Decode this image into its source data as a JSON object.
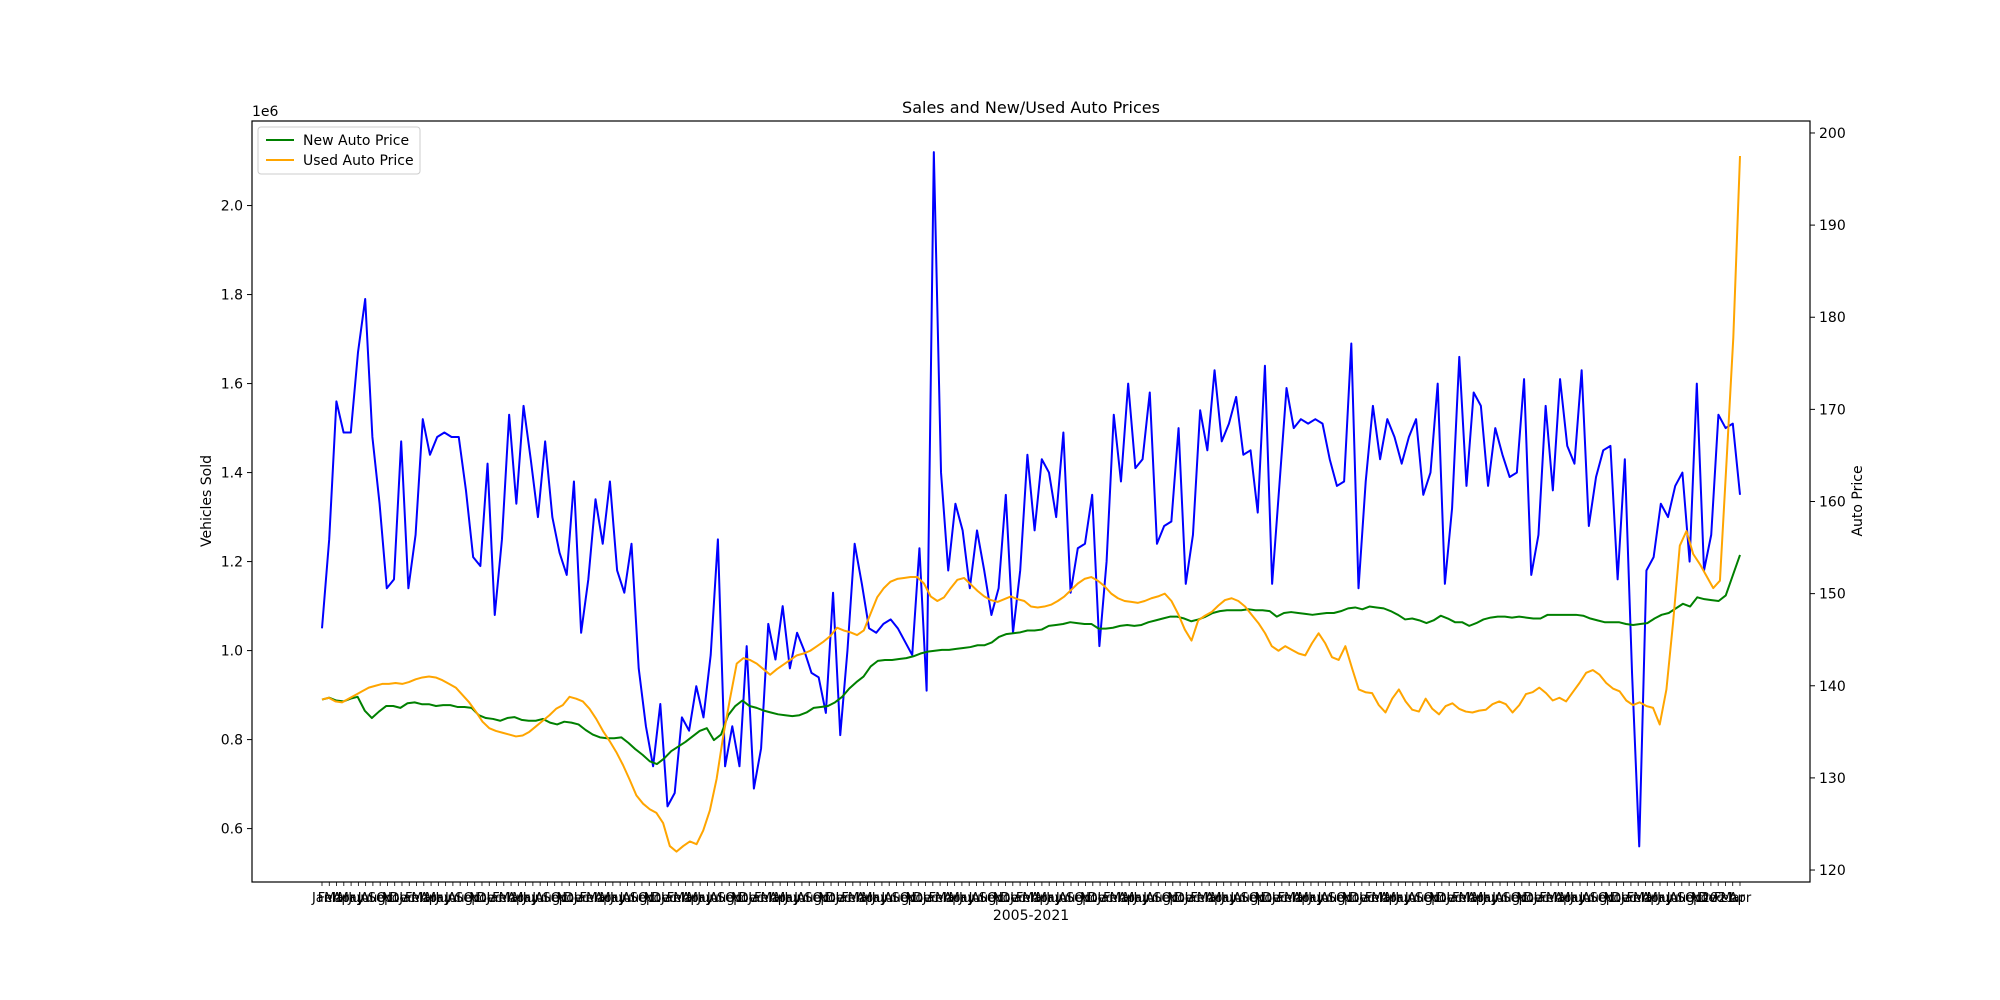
{
  "chart_data": {
    "type": "line",
    "title": "Sales and New/Used Auto Prices",
    "xlabel": "2005-2021",
    "ylabel_left": "Vehicles Sold",
    "ylabel_right": "Auto Price",
    "left_offset_label": "1e6",
    "left_ylim": [
      0.48,
      2.19
    ],
    "right_ylim": [
      118.7,
      201.3
    ],
    "left_yticks": [
      0.6,
      0.8,
      1.0,
      1.2,
      1.4,
      1.6,
      1.8,
      2.0
    ],
    "left_ytick_labels": [
      "0.6",
      "0.8",
      "1.0",
      "1.2",
      "1.4",
      "1.6",
      "1.8",
      "2.0"
    ],
    "right_yticks": [
      120,
      130,
      140,
      150,
      160,
      170,
      180,
      190,
      200
    ],
    "right_ytick_labels": [
      "120",
      "130",
      "140",
      "150",
      "160",
      "170",
      "180",
      "190",
      "200"
    ],
    "x_start": "2005-01",
    "x_end": "2021-04",
    "x_tick_label_examples": [
      "Jan",
      "Mar",
      "May",
      "Jul",
      "Sep",
      "Nov",
      "2021"
    ],
    "grid": false,
    "legend": "top-left",
    "series": [
      {
        "name": "Vehicles Sold",
        "axis": "left",
        "color": "#0000ff",
        "in_legend": false,
        "values": [
          1.05,
          1.25,
          1.56,
          1.49,
          1.49,
          1.67,
          1.79,
          1.48,
          1.33,
          1.14,
          1.16,
          1.47,
          1.14,
          1.26,
          1.52,
          1.44,
          1.48,
          1.49,
          1.48,
          1.48,
          1.36,
          1.21,
          1.19,
          1.42,
          1.08,
          1.25,
          1.53,
          1.33,
          1.55,
          1.43,
          1.3,
          1.47,
          1.3,
          1.22,
          1.17,
          1.38,
          1.04,
          1.16,
          1.34,
          1.24,
          1.38,
          1.18,
          1.13,
          1.24,
          0.96,
          0.83,
          0.74,
          0.88,
          0.65,
          0.68,
          0.85,
          0.82,
          0.92,
          0.85,
          0.99,
          1.25,
          0.74,
          0.83,
          0.74,
          1.01,
          0.69,
          0.78,
          1.06,
          0.98,
          1.1,
          0.96,
          1.04,
          1.0,
          0.95,
          0.94,
          0.86,
          1.13,
          0.81,
          1.0,
          1.24,
          1.15,
          1.05,
          1.04,
          1.06,
          1.07,
          1.05,
          1.02,
          0.99,
          1.23,
          0.91,
          2.12,
          1.4,
          1.18,
          1.33,
          1.27,
          1.14,
          1.27,
          1.18,
          1.08,
          1.14,
          1.35,
          1.04,
          1.18,
          1.44,
          1.27,
          1.43,
          1.4,
          1.3,
          1.49,
          1.13,
          1.23,
          1.24,
          1.35,
          1.01,
          1.2,
          1.53,
          1.38,
          1.6,
          1.41,
          1.43,
          1.58,
          1.24,
          1.28,
          1.29,
          1.5,
          1.15,
          1.26,
          1.54,
          1.45,
          1.63,
          1.47,
          1.51,
          1.57,
          1.44,
          1.45,
          1.31,
          1.64,
          1.15,
          1.37,
          1.59,
          1.5,
          1.52,
          1.51,
          1.52,
          1.51,
          1.43,
          1.37,
          1.38,
          1.69,
          1.14,
          1.38,
          1.55,
          1.43,
          1.52,
          1.48,
          1.42,
          1.48,
          1.52,
          1.35,
          1.4,
          1.6,
          1.15,
          1.32,
          1.66,
          1.37,
          1.58,
          1.55,
          1.37,
          1.5,
          1.44,
          1.39,
          1.4,
          1.61,
          1.17,
          1.26,
          1.55,
          1.36,
          1.61,
          1.46,
          1.42,
          1.63,
          1.28,
          1.39,
          1.45,
          1.46,
          1.16,
          1.43,
          0.95,
          0.56,
          1.18,
          1.21,
          1.33,
          1.3,
          1.37,
          1.4,
          1.2,
          1.6,
          1.18,
          1.26,
          1.53,
          1.5,
          1.51,
          1.35
        ]
      },
      {
        "name": "New Auto Price",
        "axis": "right",
        "color": "#008000",
        "in_legend": true,
        "values": [
          138.5,
          138.7,
          138.4,
          138.3,
          138.6,
          138.8,
          137.3,
          136.5,
          137.2,
          137.8,
          137.8,
          137.6,
          138.1,
          138.2,
          138.0,
          138.0,
          137.8,
          137.9,
          137.9,
          137.7,
          137.7,
          137.6,
          136.8,
          136.5,
          136.4,
          136.2,
          136.5,
          136.6,
          136.3,
          136.2,
          136.2,
          136.4,
          136.0,
          135.8,
          136.1,
          136.0,
          135.8,
          135.2,
          134.7,
          134.4,
          134.3,
          134.3,
          134.4,
          133.8,
          133.1,
          132.5,
          131.8,
          131.5,
          132.1,
          132.9,
          133.4,
          133.9,
          134.5,
          135.1,
          135.4,
          134.1,
          134.7,
          136.8,
          137.8,
          138.4,
          137.8,
          137.6,
          137.3,
          137.1,
          136.9,
          136.8,
          136.7,
          136.8,
          137.1,
          137.6,
          137.7,
          137.8,
          138.2,
          138.8,
          139.7,
          140.4,
          141.0,
          142.1,
          142.7,
          142.8,
          142.8,
          142.9,
          143.0,
          143.2,
          143.5,
          143.7,
          143.8,
          143.9,
          143.9,
          144.0,
          144.1,
          144.2,
          144.4,
          144.4,
          144.7,
          145.3,
          145.6,
          145.7,
          145.8,
          146.0,
          146.0,
          146.1,
          146.5,
          146.6,
          146.7,
          146.9,
          146.8,
          146.7,
          146.7,
          146.2,
          146.2,
          146.3,
          146.5,
          146.6,
          146.5,
          146.6,
          146.9,
          147.1,
          147.3,
          147.5,
          147.5,
          147.3,
          147.0,
          147.2,
          147.5,
          147.9,
          148.1,
          148.2,
          148.2,
          148.2,
          148.3,
          148.2,
          148.2,
          148.1,
          147.5,
          147.9,
          148.0,
          147.9,
          147.8,
          147.7,
          147.8,
          147.9,
          147.9,
          148.1,
          148.4,
          148.5,
          148.3,
          148.6,
          148.5,
          148.4,
          148.1,
          147.7,
          147.2,
          147.3,
          147.1,
          146.8,
          147.1,
          147.6,
          147.3,
          146.9,
          146.9,
          146.5,
          146.8,
          147.2,
          147.4,
          147.5,
          147.5,
          147.4,
          147.5,
          147.4,
          147.3,
          147.3,
          147.7,
          147.7,
          147.7,
          147.7,
          147.7,
          147.6,
          147.3,
          147.1,
          146.9,
          146.9,
          146.9,
          146.7,
          146.6,
          146.7,
          146.8,
          147.3,
          147.7,
          147.9,
          148.4,
          148.9,
          148.6,
          149.6,
          149.4,
          149.3,
          149.2,
          149.8,
          152.0,
          154.2
        ]
      },
      {
        "name": "Used Auto Price",
        "axis": "right",
        "color": "#ffa500",
        "in_legend": true,
        "values": [
          138.5,
          138.7,
          138.3,
          138.2,
          138.6,
          139.0,
          139.4,
          139.8,
          140.0,
          140.2,
          140.2,
          140.3,
          140.2,
          140.4,
          140.7,
          140.9,
          141.0,
          140.9,
          140.6,
          140.2,
          139.8,
          139.0,
          138.2,
          137.2,
          136.1,
          135.4,
          135.1,
          134.9,
          134.7,
          134.5,
          134.6,
          135.0,
          135.6,
          136.2,
          136.8,
          137.5,
          137.9,
          138.8,
          138.6,
          138.3,
          137.5,
          136.4,
          135.1,
          134.0,
          132.8,
          131.4,
          129.8,
          128.1,
          127.2,
          126.6,
          126.2,
          125.1,
          122.6,
          122.0,
          122.6,
          123.1,
          122.8,
          124.3,
          126.5,
          129.9,
          134.6,
          138.6,
          142.4,
          143.0,
          142.8,
          142.4,
          141.8,
          141.2,
          141.8,
          142.3,
          142.8,
          143.3,
          143.5,
          143.8,
          144.3,
          144.8,
          145.4,
          146.3,
          146.0,
          145.8,
          145.5,
          146.0,
          147.8,
          149.6,
          150.6,
          151.3,
          151.6,
          151.7,
          151.8,
          151.8,
          151.1,
          149.7,
          149.2,
          149.6,
          150.6,
          151.5,
          151.7,
          151.0,
          150.3,
          149.7,
          149.3,
          149.1,
          149.4,
          149.7,
          149.4,
          149.2,
          148.6,
          148.5,
          148.6,
          148.8,
          149.2,
          149.7,
          150.4,
          151.1,
          151.6,
          151.8,
          151.4,
          150.8,
          150.0,
          149.5,
          149.2,
          149.1,
          149.0,
          149.2,
          149.5,
          149.7,
          150.0,
          149.2,
          147.8,
          146.1,
          144.9,
          147.1,
          147.6,
          148.0,
          148.7,
          149.3,
          149.5,
          149.2,
          148.6,
          147.7,
          146.8,
          145.7,
          144.3,
          143.8,
          144.3,
          143.9,
          143.5,
          143.3,
          144.6,
          145.7,
          144.6,
          143.1,
          142.8,
          144.3,
          141.9,
          139.6,
          139.3,
          139.2,
          137.9,
          137.1,
          138.6,
          139.6,
          138.3,
          137.4,
          137.2,
          138.6,
          137.5,
          136.9,
          137.8,
          138.1,
          137.5,
          137.2,
          137.1,
          137.3,
          137.4,
          138.0,
          138.3,
          138.0,
          137.1,
          137.9,
          139.1,
          139.3,
          139.8,
          139.2,
          138.4,
          138.7,
          138.3,
          139.3,
          140.3,
          141.4,
          141.7,
          141.2,
          140.3,
          139.7,
          139.4,
          138.4,
          137.9,
          138.2,
          137.8,
          137.6,
          135.8,
          139.6,
          146.9,
          155.2,
          156.8,
          154.3,
          153.2,
          151.9,
          150.6,
          151.4,
          164.5,
          177.8,
          197.5
        ]
      }
    ]
  }
}
